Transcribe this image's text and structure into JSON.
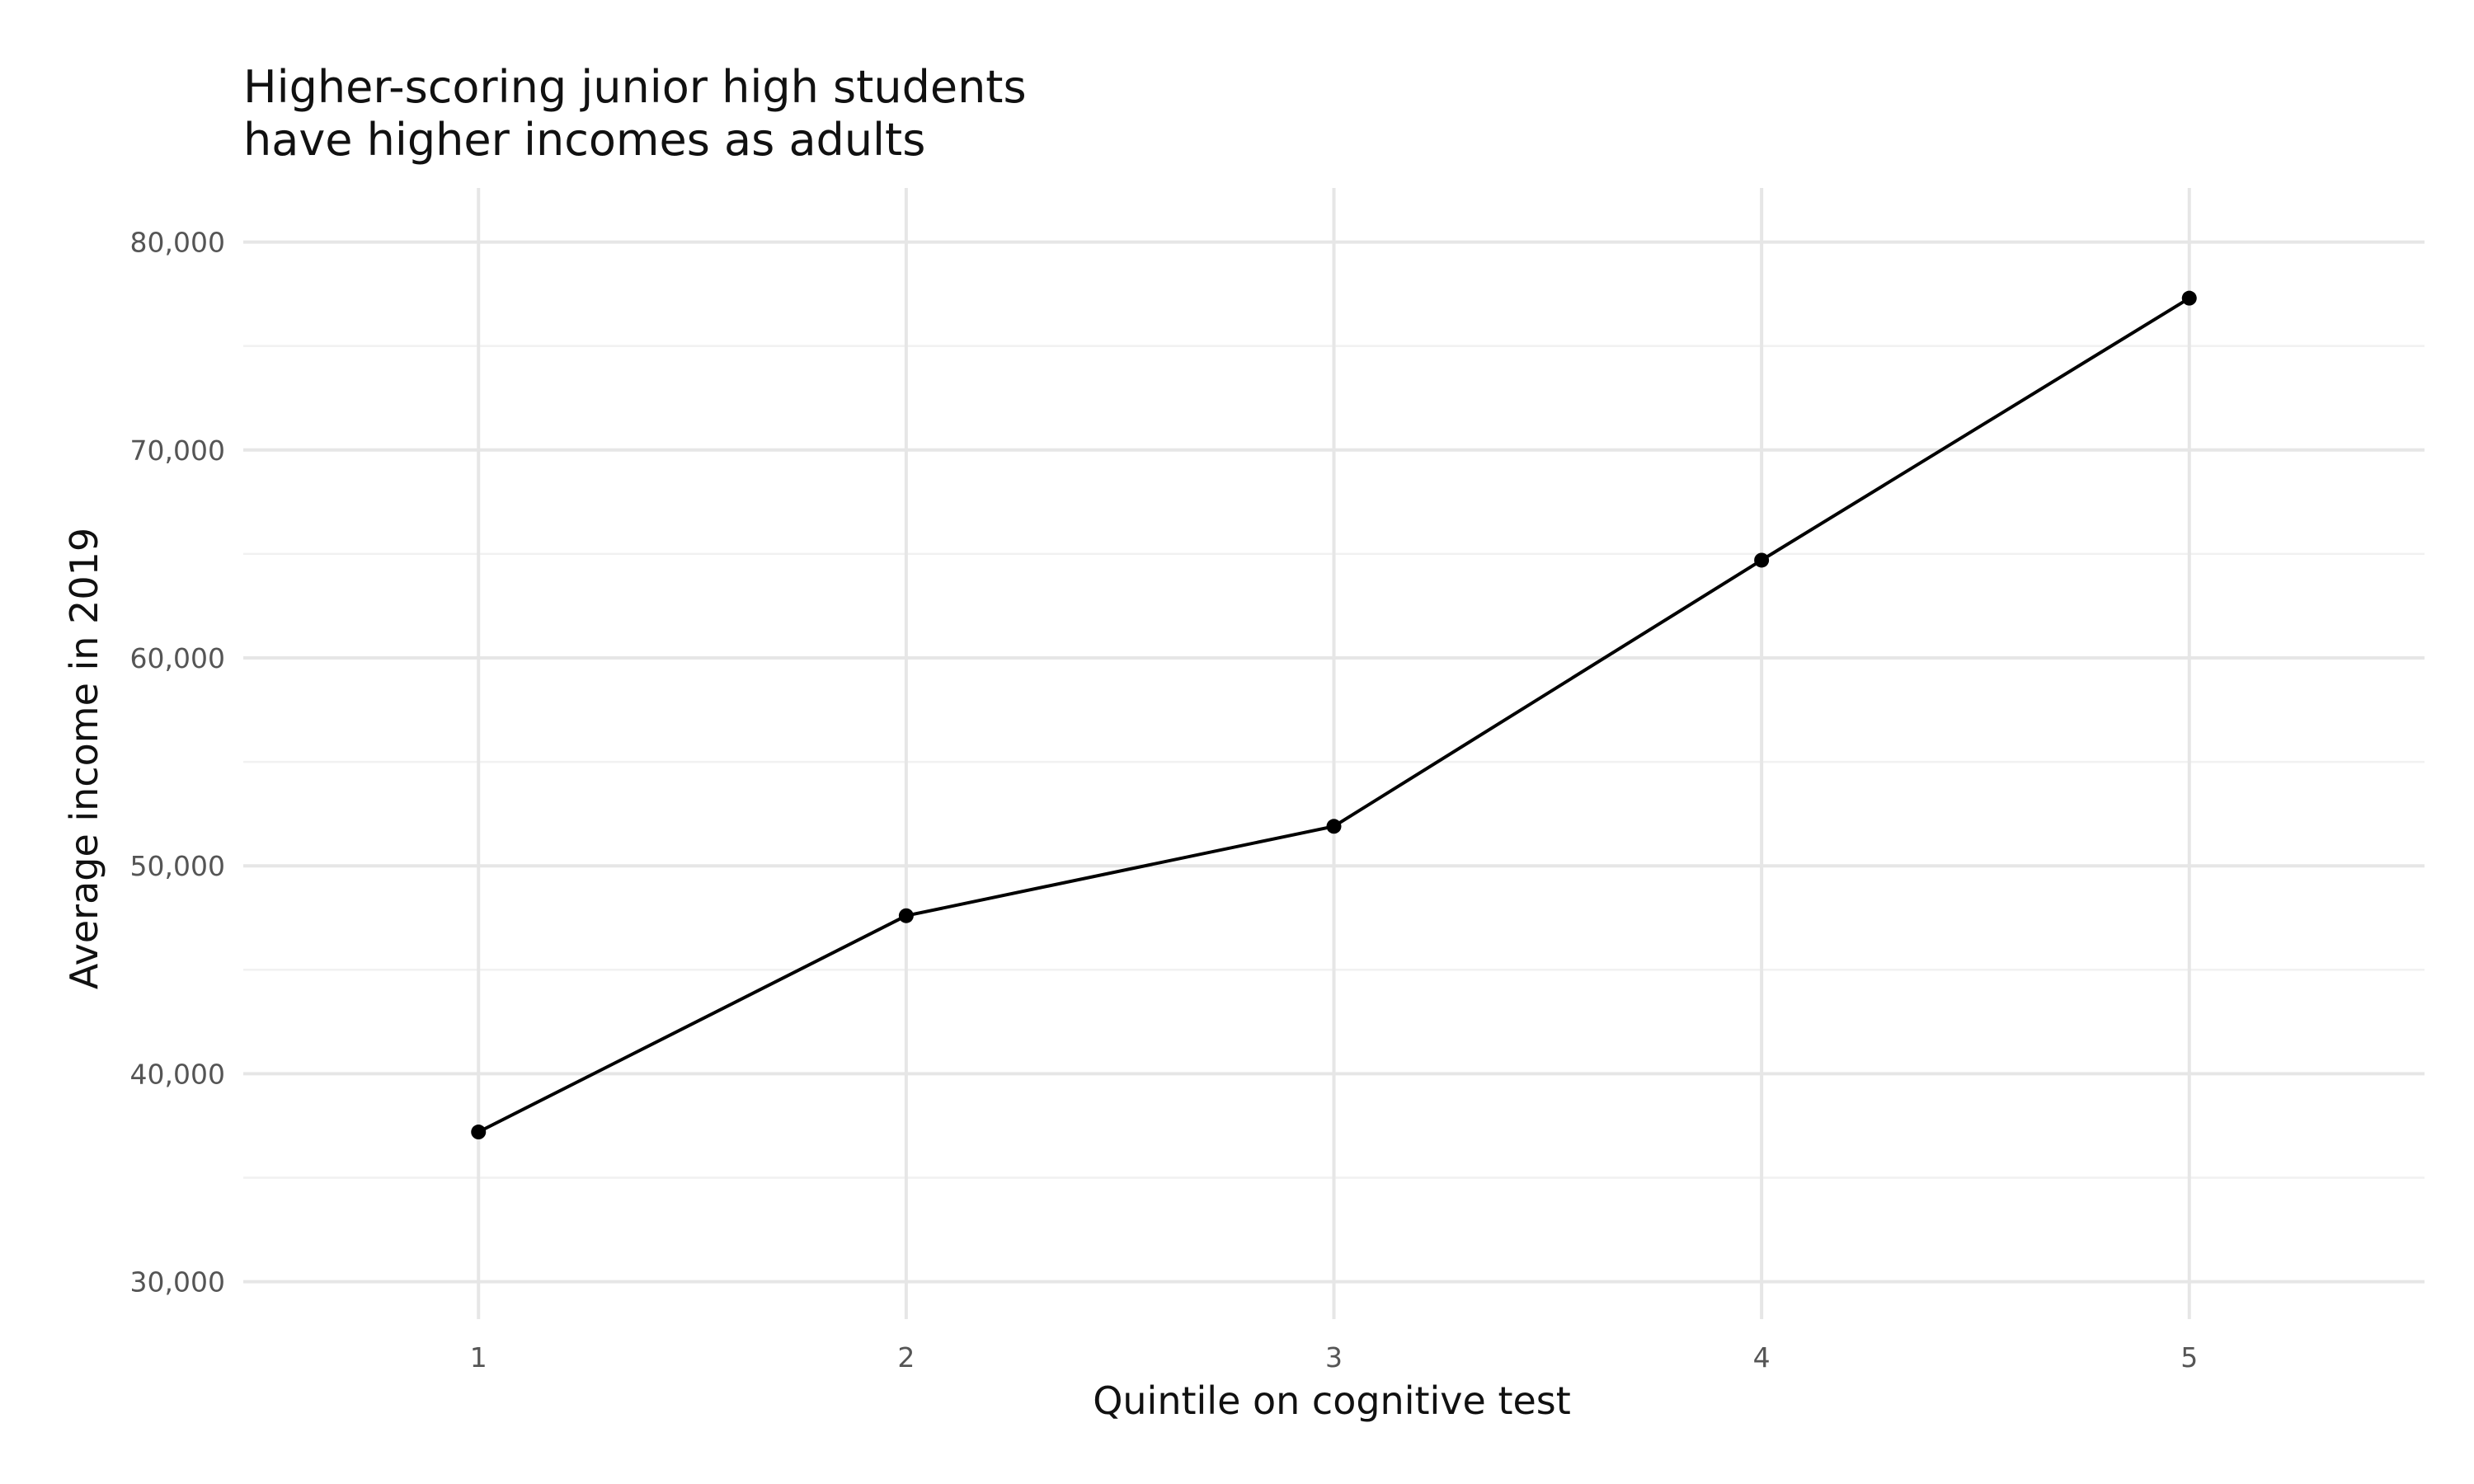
{
  "chart_data": {
    "type": "line",
    "title": [
      "Higher-scoring junior high students",
      "have higher incomes as adults"
    ],
    "xlabel": "Quintile on cognitive test",
    "ylabel": "Average income in 2019",
    "x": [
      1,
      2,
      3,
      4,
      5
    ],
    "values": [
      37200,
      47600,
      51900,
      64700,
      77300
    ],
    "xlim": [
      0.45,
      5.55
    ],
    "ylim": [
      28200,
      82600
    ],
    "x_ticks": [
      1,
      2,
      3,
      4,
      5
    ],
    "x_tick_labels": [
      "1",
      "2",
      "3",
      "4",
      "5"
    ],
    "y_ticks": [
      30000,
      40000,
      50000,
      60000,
      70000,
      80000
    ],
    "y_tick_labels": [
      "30,000",
      "40,000",
      "50,000",
      "60,000",
      "70,000",
      "80,000"
    ],
    "y_minor_ticks": [
      35000,
      45000,
      55000,
      65000,
      75000
    ],
    "grid": true,
    "legend": "none",
    "line_color": "#000000",
    "grid_color": "#e6e6e6"
  }
}
